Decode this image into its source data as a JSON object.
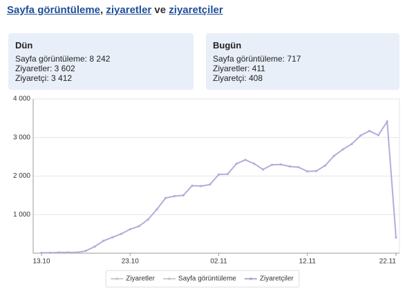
{
  "header": {
    "title_parts": [
      {
        "text": "Sayfa görüntüleme",
        "link": true
      },
      {
        "text": ",",
        "link": false
      },
      {
        "text": "ziyaretler",
        "link": true
      },
      {
        "text": "ve",
        "link": false
      },
      {
        "text": "ziyaretçiler",
        "link": true
      }
    ]
  },
  "panels": [
    {
      "title": "Dün",
      "lines": [
        "Sayfa görüntüleme: 8 242",
        "Ziyaretler: 3 602",
        "Ziyaretçi: 3 412"
      ]
    },
    {
      "title": "Bugün",
      "lines": [
        "Sayfa görüntüleme: 717",
        "Ziyaretler: 411",
        "Ziyaretçi: 408"
      ]
    }
  ],
  "chart_data": {
    "type": "line",
    "categories": [
      "13.10",
      null,
      null,
      null,
      null,
      null,
      null,
      null,
      null,
      null,
      "23.10",
      null,
      null,
      null,
      null,
      null,
      null,
      null,
      null,
      null,
      "02.11",
      null,
      null,
      null,
      null,
      null,
      null,
      null,
      null,
      null,
      "12.11",
      null,
      null,
      null,
      null,
      null,
      null,
      null,
      null,
      null,
      "22.11"
    ],
    "highlight_category_color": "#cc0000",
    "series": [
      {
        "name": "Ziyaretler",
        "visible": false,
        "color": "#cccccc"
      },
      {
        "name": "Sayfa görüntüleme",
        "visible": false,
        "color": "#cccccc"
      },
      {
        "name": "Ziyaretçiler",
        "visible": true,
        "color": "#b3acd9",
        "values": [
          10,
          10,
          20,
          20,
          20,
          60,
          170,
          320,
          410,
          500,
          620,
          700,
          870,
          1130,
          1430,
          1480,
          1500,
          1750,
          1740,
          1780,
          2040,
          2050,
          2320,
          2420,
          2320,
          2170,
          2290,
          2300,
          2250,
          2230,
          2120,
          2130,
          2270,
          2520,
          2690,
          2830,
          3050,
          3170,
          3060,
          3412,
          408
        ]
      }
    ],
    "ylim": [
      0,
      4000
    ],
    "yticks": [
      {
        "value": 1000,
        "label": "1 000"
      },
      {
        "value": 2000,
        "label": "2 000"
      },
      {
        "value": 3000,
        "label": "3 000"
      },
      {
        "value": 4000,
        "label": "4 000"
      }
    ],
    "grid": true,
    "legend": "bottom"
  }
}
